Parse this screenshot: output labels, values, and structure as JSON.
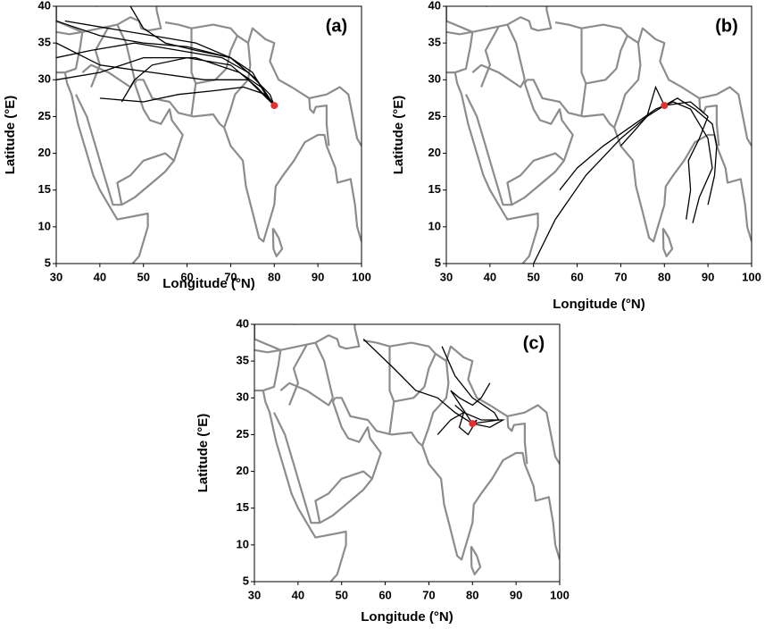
{
  "chart_data": [
    {
      "type": "line",
      "title": "(a)",
      "xlabel": "Longitude (°N)",
      "ylabel": "Latitude (°E)",
      "xlim": [
        30,
        100
      ],
      "ylim": [
        5,
        40
      ],
      "xticks": [
        30,
        40,
        50,
        60,
        70,
        80,
        90,
        100
      ],
      "yticks": [
        5,
        10,
        15,
        20,
        25,
        30,
        35,
        40
      ],
      "series": [
        {
          "color": "#000000",
          "x": [
            30,
            40,
            50,
            60,
            70,
            75,
            78,
            80
          ],
          "y": [
            38,
            36,
            35,
            34.5,
            33,
            31,
            28,
            26.5
          ]
        },
        {
          "color": "#000000",
          "x": [
            30,
            38,
            48,
            58,
            68,
            74,
            79,
            80
          ],
          "y": [
            33,
            34,
            35,
            34,
            33,
            31,
            28,
            26.5
          ]
        },
        {
          "color": "#000000",
          "x": [
            30,
            40,
            50,
            62,
            72,
            77,
            80
          ],
          "y": [
            30,
            31,
            33,
            33,
            31,
            29,
            26.5
          ]
        },
        {
          "color": "#000000",
          "x": [
            32,
            42,
            52,
            62,
            70,
            76,
            80
          ],
          "y": [
            38,
            37,
            36,
            35,
            33,
            30,
            26.5
          ]
        },
        {
          "color": "#000000",
          "x": [
            45,
            48,
            52,
            60,
            70,
            76,
            80
          ],
          "y": [
            27,
            30,
            32,
            33,
            32,
            29,
            26.5
          ]
        },
        {
          "color": "#000000",
          "x": [
            40,
            50,
            58,
            66,
            73,
            78,
            80
          ],
          "y": [
            27.5,
            27,
            28,
            28.5,
            29,
            28,
            26.5
          ]
        },
        {
          "color": "#000000",
          "x": [
            47,
            50,
            55,
            62,
            70,
            76,
            80
          ],
          "y": [
            40,
            37,
            35,
            34,
            33,
            30,
            26.5
          ]
        },
        {
          "color": "#000000",
          "x": [
            30,
            40,
            52,
            64,
            74,
            80
          ],
          "y": [
            35,
            32,
            31,
            30,
            30,
            26.5
          ]
        }
      ],
      "receptor": {
        "x": 80,
        "y": 26.5,
        "color": "#e53030"
      }
    },
    {
      "type": "line",
      "title": "(b)",
      "xlabel": "Longitude (°N)",
      "ylabel": "Latitude (°E)",
      "xlim": [
        30,
        100
      ],
      "ylim": [
        5,
        40
      ],
      "xticks": [
        30,
        40,
        50,
        60,
        70,
        80,
        90,
        100
      ],
      "yticks": [
        5,
        10,
        15,
        20,
        25,
        30,
        35,
        40
      ],
      "series": [
        {
          "color": "#000000",
          "x": [
            50,
            55,
            62,
            70,
            76,
            80
          ],
          "y": [
            5,
            11,
            17,
            22,
            25,
            26.5
          ]
        },
        {
          "color": "#000000",
          "x": [
            56,
            60,
            66,
            72,
            78,
            80
          ],
          "y": [
            15,
            18,
            21,
            23.5,
            26,
            26.5
          ]
        },
        {
          "color": "#000000",
          "x": [
            85,
            86,
            85.5,
            88,
            90,
            86,
            80
          ],
          "y": [
            11,
            15,
            19,
            22,
            25,
            27,
            26.5
          ]
        },
        {
          "color": "#000000",
          "x": [
            86.5,
            88,
            91,
            90,
            86,
            82,
            80
          ],
          "y": [
            10.5,
            14,
            18,
            22,
            26,
            27,
            26.5
          ]
        },
        {
          "color": "#000000",
          "x": [
            90,
            91.5,
            92,
            91,
            87,
            83,
            80
          ],
          "y": [
            13,
            17,
            21,
            24,
            26,
            27.5,
            26.5
          ]
        },
        {
          "color": "#000000",
          "x": [
            70,
            73,
            76,
            78,
            80
          ],
          "y": [
            21,
            23,
            25,
            29,
            26.5
          ]
        }
      ],
      "receptor": {
        "x": 80,
        "y": 26.5,
        "color": "#e53030"
      }
    },
    {
      "type": "line",
      "title": "(c)",
      "xlabel": "Longitude (°N)",
      "ylabel": "Latitude (°E)",
      "xlim": [
        30,
        100
      ],
      "ylim": [
        5,
        40
      ],
      "xticks": [
        30,
        40,
        50,
        60,
        70,
        80,
        90,
        100
      ],
      "yticks": [
        5,
        10,
        15,
        20,
        25,
        30,
        35,
        40
      ],
      "series": [
        {
          "color": "#000000",
          "x": [
            55,
            62,
            67,
            72,
            76,
            80
          ],
          "y": [
            38,
            34,
            31,
            30,
            28,
            26.5
          ]
        },
        {
          "color": "#000000",
          "x": [
            73,
            76,
            80,
            85,
            86,
            80
          ],
          "y": [
            37,
            33,
            30,
            28,
            27,
            26.5
          ]
        },
        {
          "color": "#000000",
          "x": [
            72,
            75,
            78,
            82,
            87,
            84,
            80
          ],
          "y": [
            25,
            27,
            28,
            27,
            27,
            26,
            26.5
          ]
        },
        {
          "color": "#000000",
          "x": [
            76,
            78,
            77,
            79,
            81,
            80
          ],
          "y": [
            29,
            28,
            26,
            25,
            27,
            26.5
          ]
        },
        {
          "color": "#000000",
          "x": [
            84,
            82,
            80,
            77,
            75,
            80
          ],
          "y": [
            32,
            30,
            29,
            30,
            31,
            26.5
          ]
        }
      ],
      "receptor": {
        "x": 80,
        "y": 26.5,
        "color": "#e53030"
      }
    }
  ]
}
